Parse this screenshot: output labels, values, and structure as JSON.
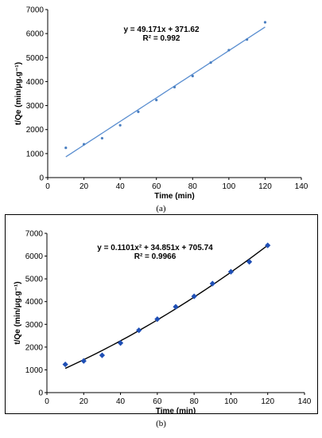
{
  "chart_data": [
    {
      "type": "scatter",
      "panel": "(a)",
      "xlabel": "Time (min)",
      "ylabel": "t/Qe (min/μg.g⁻¹)",
      "xlim": [
        0,
        140
      ],
      "ylim": [
        0,
        7000
      ],
      "xticks": [
        0,
        20,
        40,
        60,
        80,
        100,
        120,
        140
      ],
      "yticks": [
        0,
        1000,
        2000,
        3000,
        4000,
        5000,
        6000,
        7000
      ],
      "grid": false,
      "x": [
        10,
        20,
        30,
        40,
        50,
        60,
        70,
        80,
        90,
        100,
        110,
        120
      ],
      "y": [
        1240,
        1390,
        1640,
        2180,
        2740,
        3230,
        3770,
        4230,
        4790,
        5310,
        5750,
        6470
      ],
      "trendline": {
        "kind": "linear",
        "coefficients": [
          49.171,
          371.62
        ],
        "x_range": [
          10,
          120
        ]
      },
      "annotations": [
        "y = 49.171x + 371.62",
        "R² = 0.992"
      ],
      "colors": {
        "points": "#4a7fc1",
        "trendline": "#5a8ed0"
      }
    },
    {
      "type": "scatter",
      "panel": "(b)",
      "xlabel": "Time (min)",
      "ylabel": "t/Qe (min/μg.g⁻¹)",
      "xlim": [
        0,
        140
      ],
      "ylim": [
        0,
        7000
      ],
      "xticks": [
        0,
        20,
        40,
        60,
        80,
        100,
        120,
        140
      ],
      "yticks": [
        0,
        1000,
        2000,
        3000,
        4000,
        5000,
        6000,
        7000
      ],
      "grid": false,
      "x": [
        10,
        20,
        30,
        40,
        50,
        60,
        70,
        80,
        90,
        100,
        110,
        120
      ],
      "y": [
        1240,
        1390,
        1640,
        2180,
        2740,
        3230,
        3770,
        4230,
        4790,
        5310,
        5750,
        6470
      ],
      "trendline": {
        "kind": "polynomial",
        "coefficients": [
          0.1101,
          34.851,
          705.74
        ],
        "x_range": [
          10,
          120
        ]
      },
      "annotations": [
        "y = 0.1101x² + 34.851x + 705.74",
        "R² = 0.9966"
      ],
      "colors": {
        "points": "#1f4fb5",
        "trendline": "#000000"
      }
    }
  ],
  "captions": {
    "a": "(a)",
    "b": "(b)"
  }
}
